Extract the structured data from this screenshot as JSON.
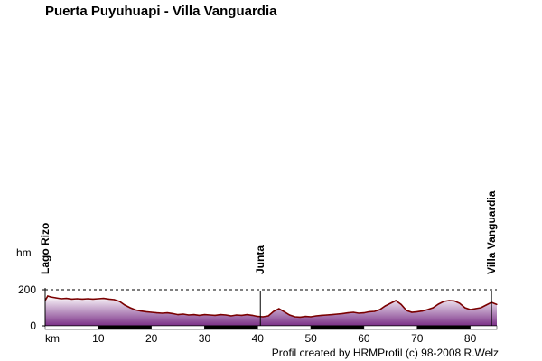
{
  "title": "Puerta Puyuhuapi - Villa Vanguardia",
  "credit": "Profil created by HRMProfil (c) 98-2008 R.Welz",
  "chart_data": {
    "type": "area",
    "title": "Puerta Puyuhuapi - Villa Vanguardia",
    "xlabel": "km",
    "ylabel": "hm",
    "x_unit": "km",
    "y_unit": "m",
    "xlim": [
      0,
      85
    ],
    "ylim": [
      0,
      200
    ],
    "x_ticks": [
      10,
      20,
      30,
      40,
      50,
      60,
      70,
      80
    ],
    "y_ticks": [
      0,
      200
    ],
    "y_tick_labels": [
      "0",
      "200"
    ],
    "reference_line": 200,
    "line_color": "#7a0000",
    "fill_top_color": "#ffffff",
    "fill_bottom_color": "#7a2f86",
    "grid": false,
    "waypoints": [
      {
        "name": "Lago Rizo",
        "km": 0,
        "elevation": 150
      },
      {
        "name": "Junta",
        "km": 40.5,
        "elevation": 195
      },
      {
        "name": "Villa Vanguardia",
        "km": 84,
        "elevation": 195
      }
    ],
    "profile": {
      "x": [
        0,
        0.5,
        1,
        2,
        3,
        4,
        5,
        6,
        7,
        8,
        9,
        10,
        11,
        12,
        13,
        14,
        15,
        16,
        17,
        18,
        19,
        20,
        21,
        22,
        23,
        24,
        25,
        26,
        27,
        28,
        29,
        30,
        31,
        32,
        33,
        34,
        35,
        36,
        37,
        38,
        39,
        40,
        41,
        42,
        43,
        44,
        45,
        46,
        47,
        48,
        49,
        50,
        51,
        52,
        53,
        54,
        55,
        56,
        57,
        58,
        59,
        60,
        61,
        62,
        63,
        64,
        65,
        66,
        67,
        68,
        69,
        70,
        71,
        72,
        73,
        74,
        75,
        76,
        77,
        78,
        79,
        80,
        81,
        82,
        83,
        84,
        85
      ],
      "y": [
        140,
        165,
        160,
        155,
        150,
        152,
        148,
        150,
        148,
        150,
        148,
        150,
        152,
        148,
        145,
        135,
        115,
        100,
        88,
        82,
        78,
        75,
        72,
        70,
        72,
        68,
        62,
        65,
        60,
        62,
        58,
        62,
        60,
        58,
        62,
        60,
        55,
        60,
        58,
        62,
        58,
        52,
        50,
        55,
        80,
        95,
        78,
        60,
        50,
        48,
        52,
        50,
        55,
        58,
        60,
        62,
        65,
        68,
        72,
        75,
        70,
        72,
        78,
        80,
        90,
        110,
        125,
        140,
        118,
        85,
        75,
        78,
        82,
        90,
        100,
        120,
        135,
        140,
        138,
        125,
        100,
        90,
        95,
        100,
        115,
        130,
        118
      ]
    }
  }
}
